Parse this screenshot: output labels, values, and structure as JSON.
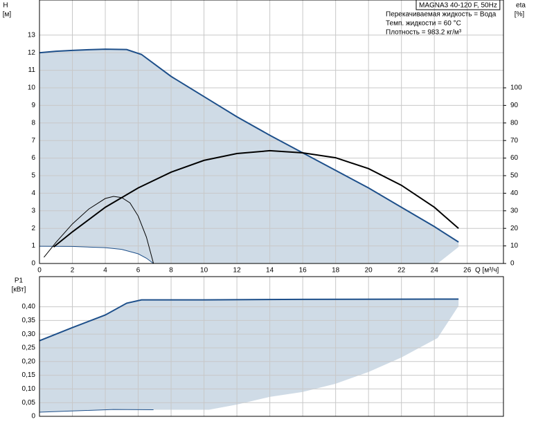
{
  "chart_data": [
    {
      "type": "line",
      "ylabel": "H",
      "yunit": "[м]",
      "y2label": "eta",
      "y2unit": "[%]",
      "xlabel": "Q [м³/ч]",
      "annotations": [
        "MAGNA3 40-120 F, 50Hz",
        "Перекачиваемая жидкость = Вода",
        "Темп. жидкости = 60 °C",
        "Плотность = 983.2 кг/м³"
      ],
      "xlim": [
        0,
        28.2
      ],
      "xticks": [
        0,
        2,
        4,
        6,
        8,
        10,
        12,
        14,
        16,
        18,
        20,
        22,
        24,
        26
      ],
      "ylim": [
        0,
        15
      ],
      "yticks": [
        0,
        1,
        2,
        3,
        4,
        5,
        6,
        7,
        8,
        9,
        10,
        11,
        12,
        13
      ],
      "y2lim": [
        0,
        150
      ],
      "y2ticks": [
        0,
        10,
        20,
        30,
        40,
        50,
        60,
        70,
        80,
        90,
        100
      ],
      "grid": true,
      "area": {
        "color": "#cfdbe6",
        "x": [
          0,
          1,
          2,
          3,
          4,
          5.3,
          6.2,
          8,
          10,
          12,
          14,
          16,
          18,
          20,
          22,
          24,
          25.47,
          25.47,
          24.2,
          6.93,
          6.5,
          6,
          5,
          4,
          2,
          0
        ],
        "values": [
          12.0,
          12.08,
          12.13,
          12.17,
          12.2,
          12.18,
          11.9,
          10.65,
          9.5,
          8.35,
          7.3,
          6.3,
          5.3,
          4.3,
          3.2,
          2.1,
          1.22,
          0.94,
          0,
          0,
          0.3,
          0.55,
          0.8,
          0.9,
          0.97,
          0.98
        ]
      },
      "series": [
        {
          "color": "#1d4f8a",
          "width": 2,
          "x": [
            0,
            1,
            2,
            3,
            4,
            5.3,
            6.2,
            8,
            10,
            12,
            14,
            16,
            18,
            20,
            22,
            24,
            25.47
          ],
          "values": [
            12.0,
            12.08,
            12.13,
            12.17,
            12.2,
            12.18,
            11.9,
            10.65,
            9.5,
            8.35,
            7.3,
            6.3,
            5.3,
            4.3,
            3.2,
            2.1,
            1.22
          ]
        },
        {
          "color": "#1d4f8a",
          "width": 1,
          "x": [
            0,
            2,
            4,
            5,
            6,
            6.5,
            6.93
          ],
          "values": [
            0.98,
            0.97,
            0.9,
            0.8,
            0.55,
            0.3,
            0
          ]
        },
        {
          "color": "#000000",
          "width": 2,
          "axis": "y2",
          "x": [
            0.86,
            2,
            4,
            6,
            8,
            10,
            12,
            14,
            16,
            18,
            20,
            22,
            24,
            25.47
          ],
          "values": [
            9.4,
            18,
            32,
            43,
            52,
            58.7,
            62.6,
            64.2,
            63,
            60.2,
            54,
            44.5,
            32,
            20
          ]
        },
        {
          "color": "#000000",
          "width": 1,
          "axis": "y2",
          "x": [
            0.27,
            1,
            2,
            3,
            4,
            4.5,
            5,
            5.5,
            6,
            6.5,
            6.93
          ],
          "values": [
            3.5,
            12,
            22.5,
            31,
            37,
            38.2,
            37.5,
            34.5,
            27,
            15,
            0
          ]
        }
      ]
    },
    {
      "type": "line",
      "ylabel": "P1",
      "yunit": "[кВт]",
      "xlim": [
        0,
        28.2
      ],
      "xticks": [
        0,
        2,
        4,
        6,
        8,
        10,
        12,
        14,
        16,
        18,
        20,
        22,
        24,
        26
      ],
      "xtick_labels": false,
      "ylim": [
        0,
        0.51
      ],
      "yticks": [
        0,
        {
          "value": 0.05,
          "label": "0,05"
        },
        {
          "value": 0.1,
          "label": "0,10"
        },
        {
          "value": 0.15,
          "label": "0,15"
        },
        {
          "value": 0.2,
          "label": "0,20"
        },
        {
          "value": 0.25,
          "label": "0,25"
        },
        {
          "value": 0.3,
          "label": "0,30"
        },
        {
          "value": 0.35,
          "label": "0,35"
        },
        {
          "value": 0.4,
          "label": "0,40"
        }
      ],
      "grid": true,
      "area": {
        "color": "#cfdbe6",
        "x": [
          0,
          2,
          4,
          5.3,
          6.2,
          10,
          16,
          25.47,
          25.47,
          24.2,
          22,
          20,
          18,
          16,
          14,
          12,
          10.3,
          6.93,
          4.5,
          0
        ],
        "values": [
          0.276,
          0.324,
          0.37,
          0.413,
          0.425,
          0.425,
          0.427,
          0.428,
          0.403,
          0.286,
          0.215,
          0.162,
          0.119,
          0.089,
          0.071,
          0.043,
          0.024,
          0.024,
          0.025,
          0.015
        ]
      },
      "series": [
        {
          "color": "#1d4f8a",
          "width": 2,
          "x": [
            0,
            2,
            4,
            5.3,
            6.2,
            10,
            16,
            25.47
          ],
          "values": [
            0.276,
            0.324,
            0.37,
            0.413,
            0.425,
            0.425,
            0.427,
            0.428
          ]
        },
        {
          "color": "#1d4f8a",
          "width": 1,
          "x": [
            0,
            4.5,
            6.93
          ],
          "values": [
            0.015,
            0.025,
            0.024
          ]
        }
      ]
    }
  ]
}
